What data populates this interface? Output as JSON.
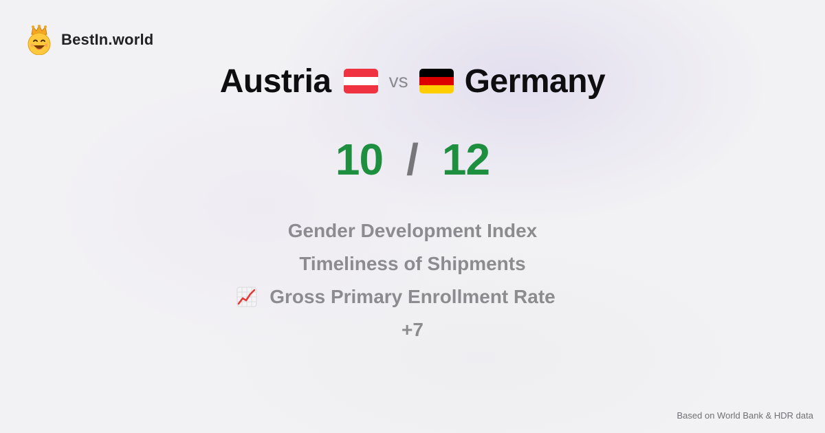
{
  "brand": {
    "name": "BestIn.world",
    "icon": "crowned-smiley-icon"
  },
  "comparison": {
    "left_country": "Austria",
    "left_flag": "austria-flag-icon",
    "vs_label": "vs",
    "right_country": "Germany",
    "right_flag": "germany-flag-icon"
  },
  "score": {
    "left": "10",
    "separator": "/",
    "right": "12"
  },
  "metrics": [
    "Gender Development Index",
    "Timeliness of Shipments",
    "Gross Primary Enrollment Rate"
  ],
  "metric_icon": "chart-increasing-icon",
  "more_label": "+7",
  "footer": "Based on World Bank & HDR data",
  "colors": {
    "score_green": "#1e8f3f",
    "metric_gray": "#8c8c90",
    "austria_red": "#ef3340",
    "germany_black": "#000000",
    "germany_red": "#dd0000",
    "germany_gold": "#ffce00"
  }
}
